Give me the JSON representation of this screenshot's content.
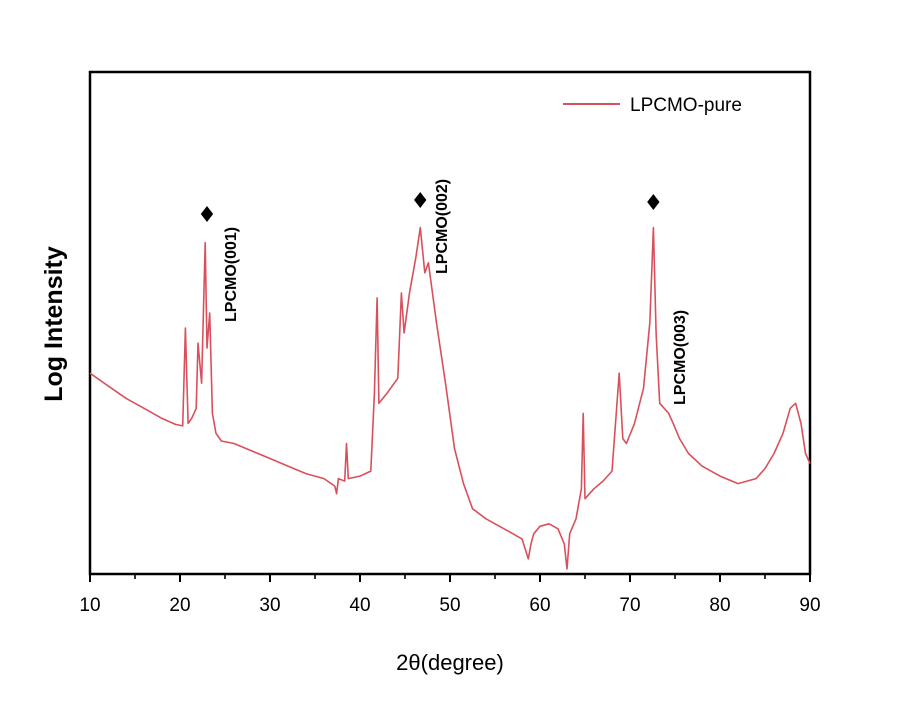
{
  "chart_data": {
    "type": "line",
    "xlabel": "2θ(degree)",
    "ylabel": "Log Intensity",
    "xlim": [
      10,
      90
    ],
    "ylim": [
      0,
      100
    ],
    "y_ticks_shown": false,
    "x_ticks": [
      10,
      20,
      30,
      40,
      50,
      60,
      70,
      80,
      90
    ],
    "x_tick_labels": [
      "10",
      "20",
      "30",
      "40",
      "50",
      "60",
      "70",
      "80",
      "90"
    ],
    "legend": {
      "position": "top-right"
    },
    "series_color": "#d9505d",
    "series": [
      {
        "name": "LPCMO-pure",
        "x": [
          10,
          12,
          14,
          16,
          18,
          19.5,
          20.3,
          20.6,
          20.9,
          21.3,
          21.8,
          22.0,
          22.4,
          22.8,
          23.0,
          23.3,
          23.6,
          24.0,
          24.6,
          26,
          28,
          30,
          32,
          34,
          36,
          37.2,
          37.4,
          37.6,
          38.3,
          38.5,
          38.7,
          40,
          41.2,
          41.6,
          41.9,
          42.1,
          43,
          44.2,
          44.6,
          44.9,
          45.5,
          46.2,
          46.7,
          47.2,
          47.6,
          47.9,
          48.5,
          49.5,
          50.5,
          51.5,
          52.5,
          54,
          56,
          57,
          58,
          58.7,
          59,
          59.3,
          60,
          61,
          62,
          62.7,
          63.0,
          63.3,
          64,
          64.6,
          64.8,
          65.0,
          66,
          67,
          68,
          68.8,
          69.2,
          69.6,
          70.5,
          71.5,
          72.2,
          72.6,
          72.9,
          73.3,
          73.8,
          74.3,
          74.8,
          75.5,
          76.5,
          78,
          80,
          82,
          84,
          85,
          86,
          87,
          87.8,
          88.4,
          89,
          89.5,
          90
        ],
        "y": [
          40,
          37.5,
          35,
          33,
          31,
          29.8,
          29.5,
          49,
          30,
          31,
          33,
          46,
          38,
          66,
          45,
          52,
          32,
          28,
          26.5,
          26,
          24.5,
          23,
          21.5,
          20,
          19,
          17.5,
          16,
          19,
          18.5,
          26,
          19,
          19.5,
          20.5,
          36,
          55,
          34,
          36,
          39,
          56,
          48,
          56,
          63,
          69,
          60,
          62,
          58,
          50,
          38,
          25,
          18,
          13,
          11,
          9,
          8,
          7,
          3,
          6,
          8,
          9.5,
          10,
          9,
          6,
          1,
          8,
          11,
          17,
          32,
          15,
          17,
          18.5,
          20.5,
          40,
          27,
          26,
          30,
          37,
          50,
          69,
          48,
          34,
          33,
          32,
          30,
          27,
          24,
          21.5,
          19.5,
          18,
          19,
          21,
          24,
          28,
          33,
          34,
          30,
          24,
          22
        ]
      }
    ],
    "annotations": [
      {
        "text": "LPCMO(001)",
        "x": 23.0,
        "marker": "♦"
      },
      {
        "text": "LPCMO(002)",
        "x": 46.7,
        "marker": "♦"
      },
      {
        "text": "LPCMO(003)",
        "x": 72.6,
        "marker": "♦"
      }
    ]
  }
}
